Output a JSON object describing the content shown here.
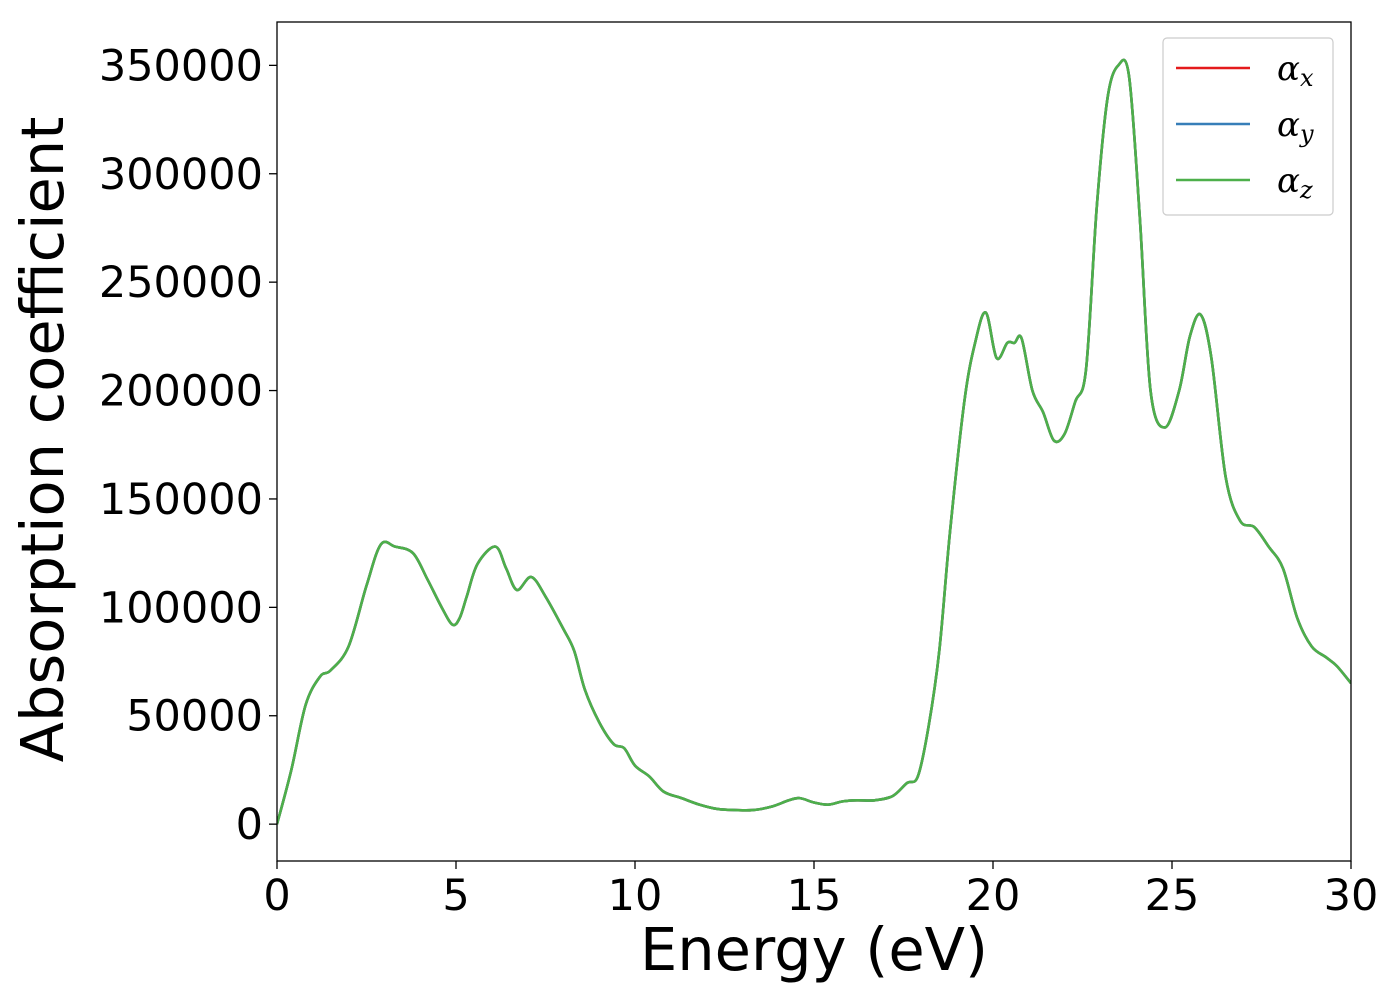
{
  "chart_data": {
    "type": "line",
    "title": "",
    "xlabel": "Energy (eV)",
    "ylabel": "Absorption coefficient",
    "xlim": [
      0,
      30
    ],
    "ylim": [
      -17000,
      370000
    ],
    "xticks": [
      0,
      5,
      10,
      15,
      20,
      25,
      30
    ],
    "yticks": [
      0,
      50000,
      100000,
      150000,
      200000,
      250000,
      300000,
      350000
    ],
    "grid": false,
    "legend_position": "upper right",
    "legend": [
      {
        "symbol": "α",
        "subscript": "x",
        "color": "#e41a1c"
      },
      {
        "symbol": "α",
        "subscript": "y",
        "color": "#377eb8"
      },
      {
        "symbol": "α",
        "subscript": "z",
        "color": "#4daf4a"
      }
    ],
    "x": [
      0.0,
      0.4,
      0.8,
      1.2,
      1.5,
      2.0,
      2.5,
      2.9,
      3.3,
      3.8,
      4.2,
      4.6,
      4.9,
      5.1,
      5.3,
      5.6,
      6.1,
      6.4,
      6.7,
      7.1,
      7.5,
      8.0,
      8.3,
      8.6,
      9.0,
      9.4,
      9.7,
      10.0,
      10.4,
      10.8,
      11.3,
      11.8,
      12.3,
      12.8,
      13.3,
      13.8,
      14.3,
      14.6,
      15.0,
      15.4,
      15.8,
      16.2,
      16.7,
      17.2,
      17.6,
      17.9,
      18.2,
      18.5,
      18.8,
      19.2,
      19.5,
      19.8,
      20.1,
      20.4,
      20.6,
      20.8,
      21.1,
      21.4,
      21.7,
      22.0,
      22.3,
      22.6,
      22.9,
      23.2,
      23.5,
      23.8,
      24.1,
      24.4,
      24.8,
      25.2,
      25.5,
      25.8,
      26.1,
      26.5,
      26.9,
      27.3,
      27.7,
      28.1,
      28.5,
      28.9,
      29.3,
      29.6,
      30.0
    ],
    "series": [
      {
        "color": "#e41a1c",
        "values": [
          0,
          25000,
          55000,
          68000,
          71000,
          82000,
          110000,
          129000,
          128000,
          125000,
          113000,
          100000,
          92000,
          95000,
          105000,
          120000,
          128000,
          118000,
          108000,
          114000,
          105000,
          90000,
          80000,
          62000,
          47000,
          37000,
          35000,
          27000,
          22000,
          15000,
          12000,
          9000,
          7000,
          6500,
          6500,
          8000,
          11000,
          12000,
          10000,
          9000,
          10500,
          11000,
          11000,
          13000,
          19000,
          22000,
          45000,
          80000,
          135000,
          195000,
          222000,
          236000,
          215000,
          222000,
          222000,
          224000,
          200000,
          190000,
          177000,
          180000,
          195000,
          210000,
          285000,
          335000,
          350000,
          345000,
          280000,
          200000,
          183000,
          200000,
          225000,
          235000,
          215000,
          160000,
          140000,
          137000,
          128000,
          118000,
          95000,
          82000,
          77000,
          73000,
          65000
        ]
      },
      {
        "color": "#377eb8",
        "values": [
          0,
          25000,
          55000,
          68000,
          71000,
          82000,
          110000,
          129000,
          128000,
          125000,
          113000,
          100000,
          92000,
          95000,
          105000,
          120000,
          128000,
          118000,
          108000,
          114000,
          105000,
          90000,
          80000,
          62000,
          47000,
          37000,
          35000,
          27000,
          22000,
          15000,
          12000,
          9000,
          7000,
          6500,
          6500,
          8000,
          11000,
          12000,
          10000,
          9000,
          10500,
          11000,
          11000,
          13000,
          19000,
          22000,
          45000,
          80000,
          135000,
          195000,
          222000,
          236000,
          215000,
          222000,
          222000,
          224000,
          200000,
          190000,
          177000,
          180000,
          195000,
          210000,
          285000,
          335000,
          350000,
          345000,
          280000,
          200000,
          183000,
          200000,
          225000,
          235000,
          215000,
          160000,
          140000,
          137000,
          128000,
          118000,
          95000,
          82000,
          77000,
          73000,
          65000
        ]
      },
      {
        "color": "#4daf4a",
        "values": [
          0,
          25000,
          55000,
          68000,
          71000,
          82000,
          110000,
          129000,
          128000,
          125000,
          113000,
          100000,
          92000,
          95000,
          105000,
          120000,
          128000,
          118000,
          108000,
          114000,
          105000,
          90000,
          80000,
          62000,
          47000,
          37000,
          35000,
          27000,
          22000,
          15000,
          12000,
          9000,
          7000,
          6500,
          6500,
          8000,
          11000,
          12000,
          10000,
          9000,
          10500,
          11000,
          11000,
          13000,
          19000,
          22000,
          45000,
          80000,
          135000,
          195000,
          222000,
          236000,
          215000,
          222000,
          222000,
          224000,
          200000,
          190000,
          177000,
          180000,
          195000,
          210000,
          285000,
          335000,
          350000,
          345000,
          280000,
          200000,
          183000,
          200000,
          225000,
          235000,
          215000,
          160000,
          140000,
          137000,
          128000,
          118000,
          95000,
          82000,
          77000,
          73000,
          65000
        ]
      }
    ]
  }
}
